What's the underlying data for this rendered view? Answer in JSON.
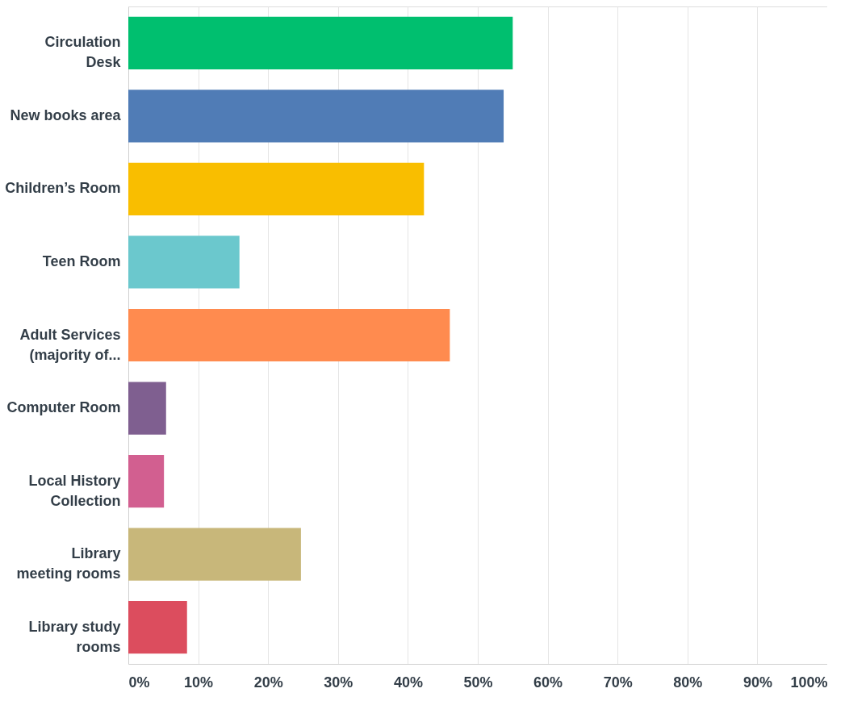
{
  "chart_data": {
    "type": "bar",
    "orientation": "horizontal",
    "categories": [
      "Circulation\nDesk",
      "New books area",
      "Children’s Room",
      "Teen Room",
      "Adult Services\n(majority of...",
      "Computer Room",
      "Local History\nCollection",
      "Library\nmeeting rooms",
      "Library study\nrooms"
    ],
    "values": [
      55.0,
      53.7,
      42.3,
      15.9,
      46.0,
      5.4,
      5.1,
      24.7,
      8.4
    ],
    "colors": [
      "#00bf6f",
      "#507cb6",
      "#f9be00",
      "#6bc8cd",
      "#ff8b4f",
      "#7f5f90",
      "#d25f90",
      "#c8b77a",
      "#dc4d5e"
    ],
    "xlim": [
      0,
      100
    ],
    "xticks": [
      {
        "value": 0,
        "label": "0%"
      },
      {
        "value": 10,
        "label": "10%"
      },
      {
        "value": 20,
        "label": "20%"
      },
      {
        "value": 30,
        "label": "30%"
      },
      {
        "value": 40,
        "label": "40%"
      },
      {
        "value": 50,
        "label": "50%"
      },
      {
        "value": 60,
        "label": "60%"
      },
      {
        "value": 70,
        "label": "70%"
      },
      {
        "value": 80,
        "label": "80%"
      },
      {
        "value": 90,
        "label": "90%"
      },
      {
        "value": 100,
        "label": "100%"
      }
    ],
    "grid": "x"
  }
}
